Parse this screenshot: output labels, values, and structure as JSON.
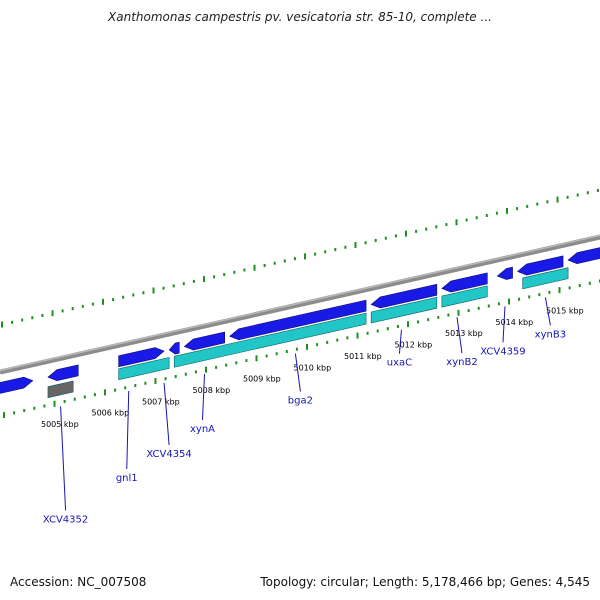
{
  "title": "Xanthomonas campestris pv. vesicatoria str. 85-10, complete ...",
  "footer": {
    "accession": "Accession: NC_007508",
    "summary": "Topology: circular; Length: 5,178,466 bp; Genes: 4,545"
  },
  "colors": {
    "forward_gene": "#1a1ae6",
    "reverse_gene": "#22c6c6",
    "pseudo_gene": "#666666",
    "backbone": "#8c8c8c",
    "tick": "#1f8f1f",
    "label": "#1515b5"
  },
  "kbp_ticks": [
    {
      "kbp": 5005,
      "label": "5005 kbp"
    },
    {
      "kbp": 5006,
      "label": "5006 kbp"
    },
    {
      "kbp": 5007,
      "label": "5007 kbp"
    },
    {
      "kbp": 5008,
      "label": "5008 kbp"
    },
    {
      "kbp": 5009,
      "label": "5009 kbp"
    },
    {
      "kbp": 5010,
      "label": "5010 kbp"
    },
    {
      "kbp": 5011,
      "label": "5011 kbp"
    },
    {
      "kbp": 5012,
      "label": "5012 kbp"
    },
    {
      "kbp": 5013,
      "label": "5013 kbp"
    },
    {
      "kbp": 5014,
      "label": "5014 kbp"
    },
    {
      "kbp": 5015,
      "label": "5015 kbp"
    }
  ],
  "genes": {
    "forward": [
      {
        "start": 5003.6,
        "end": 5004.6
      },
      {
        "start": 5004.9,
        "end": 5005.5
      },
      {
        "start": 5006.3,
        "end": 5007.2
      },
      {
        "start": 5007.3,
        "end": 5007.5
      },
      {
        "start": 5007.6,
        "end": 5008.4
      },
      {
        "start": 5008.5,
        "end": 5011.2
      },
      {
        "start": 5011.3,
        "end": 5012.6
      },
      {
        "start": 5012.7,
        "end": 5013.6
      },
      {
        "start": 5013.8,
        "end": 5014.1
      },
      {
        "start": 5014.2,
        "end": 5015.1
      },
      {
        "start": 5015.2,
        "end": 5016.2
      }
    ],
    "reverse": [
      {
        "start": 5006.3,
        "end": 5007.3
      },
      {
        "start": 5007.4,
        "end": 5011.2
      },
      {
        "start": 5011.3,
        "end": 5012.6
      },
      {
        "start": 5012.7,
        "end": 5013.6
      },
      {
        "start": 5014.3,
        "end": 5015.2
      }
    ],
    "pseudo": [
      {
        "start": 5004.9,
        "end": 5005.4
      }
    ]
  },
  "gene_labels": [
    {
      "name": "XCV4352",
      "kbp": 5005.15
    },
    {
      "name": "gnl1",
      "kbp": 5006.5
    },
    {
      "name": "XCV4354",
      "kbp": 5007.2
    },
    {
      "name": "xynA",
      "kbp": 5008.0
    },
    {
      "name": "bga2",
      "kbp": 5009.8
    },
    {
      "name": "uxaC",
      "kbp": 5011.9
    },
    {
      "name": "xynB2",
      "kbp": 5013.0
    },
    {
      "name": "XCV4359",
      "kbp": 5013.95
    },
    {
      "name": "xynB3",
      "kbp": 5014.75
    }
  ]
}
